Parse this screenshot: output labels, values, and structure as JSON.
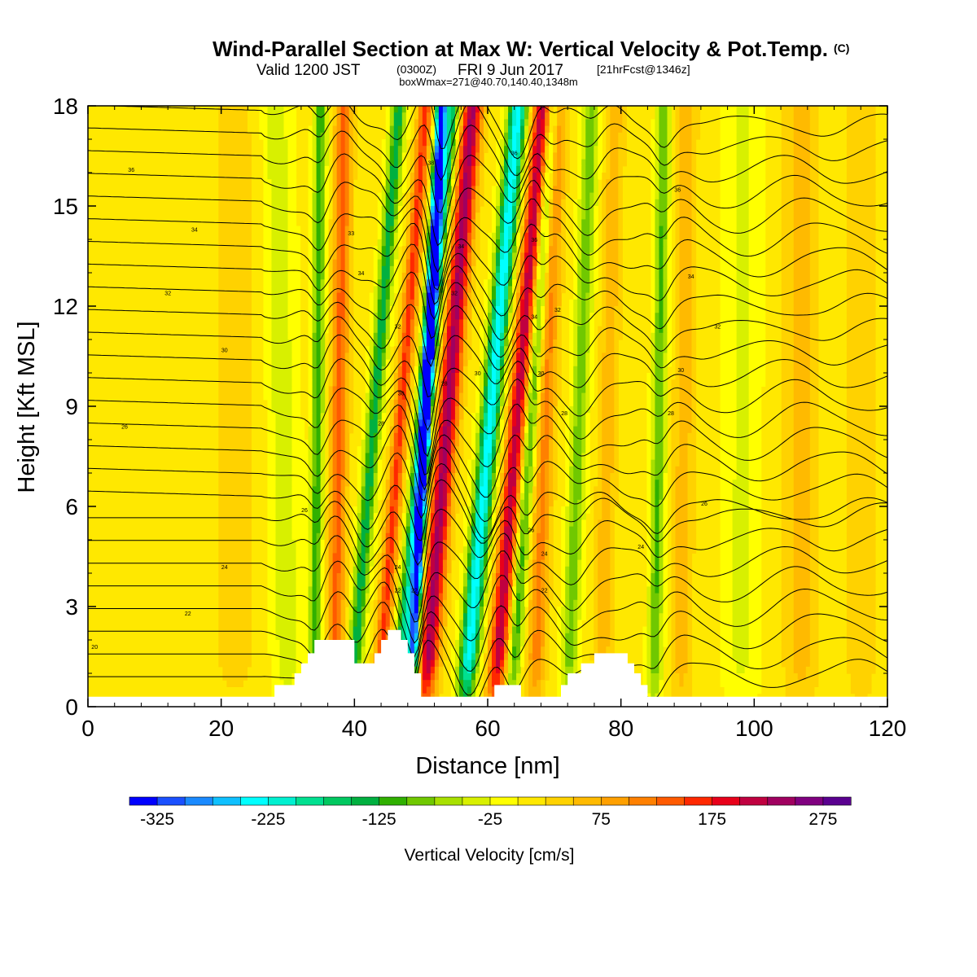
{
  "header": {
    "title": "Wind-Parallel Section at Max W: Vertical Velocity & Pot.Temp.",
    "title_mark": "(C)",
    "valid_prefix": "Valid 1200 JST",
    "valid_utc": "(0300Z)",
    "valid_date": "FRI 9 Jun 2017",
    "forecast": "[21hrFcst@1346z]",
    "boxwmax": "boxWmax=271@40.70,140.40,1348m"
  },
  "chart_data": {
    "type": "heatmap",
    "title": "Wind-Parallel Section at Max W: Vertical Velocity & Pot.Temp.",
    "xlabel": "Distance [nm]",
    "ylabel": "Height [Kft MSL]",
    "xlim": [
      0,
      120
    ],
    "ylim": [
      0,
      18
    ],
    "xticks": [
      0,
      20,
      40,
      60,
      80,
      100,
      120
    ],
    "yticks": [
      0,
      3,
      6,
      9,
      12,
      15,
      18
    ],
    "colorbar": {
      "label": "Vertical Velocity [cm/s]",
      "tick_labels": [
        "-325",
        "-225",
        "-125",
        "-25",
        "75",
        "175",
        "275"
      ],
      "tick_values": [
        -325,
        -225,
        -125,
        -25,
        75,
        175,
        275
      ],
      "min": -350,
      "max": 300,
      "step": 25,
      "colors": [
        "#0000ff",
        "#1a50ff",
        "#1a8aff",
        "#0fc0ff",
        "#00ffff",
        "#00f0d0",
        "#00e090",
        "#00c860",
        "#00b040",
        "#30b000",
        "#70c800",
        "#a8e000",
        "#d8f000",
        "#ffff00",
        "#ffe800",
        "#ffd200",
        "#ffba00",
        "#ffa000",
        "#ff8000",
        "#ff5a00",
        "#ff2800",
        "#e8001a",
        "#c00040",
        "#a00060",
        "#800080",
        "#5a0090"
      ]
    },
    "w_features": [
      {
        "x": 30,
        "w": -50,
        "width": 2.2,
        "tilt": -0.1
      },
      {
        "x": 34,
        "w": -125,
        "width": 0.9,
        "tilt": 0.05
      },
      {
        "x": 37,
        "w": 125,
        "width": 1.3,
        "tilt": 0.08
      },
      {
        "x": 39.5,
        "w": -150,
        "width": 1.1,
        "tilt": 0.4
      },
      {
        "x": 43.5,
        "w": 150,
        "width": 1.1,
        "tilt": 0.4
      },
      {
        "x": 46.5,
        "w": -190,
        "width": 1.2,
        "tilt": 0.45
      },
      {
        "x": 48.5,
        "w": -325,
        "width": 0.8,
        "tilt": 0.25
      },
      {
        "x": 50.5,
        "w": 225,
        "width": 1.6,
        "tilt": 0.4
      },
      {
        "x": 56.5,
        "w": -250,
        "width": 1.4,
        "tilt": 0.45
      },
      {
        "x": 61,
        "w": 210,
        "width": 1.4,
        "tilt": 0.4
      },
      {
        "x": 63.5,
        "w": -125,
        "width": 1.0,
        "tilt": 0.35
      },
      {
        "x": 67,
        "w": 100,
        "width": 1.4,
        "tilt": 0.2
      },
      {
        "x": 72,
        "w": -100,
        "width": 1.2,
        "tilt": 0.2
      },
      {
        "x": 77,
        "w": 60,
        "width": 1.4,
        "tilt": 0.12
      },
      {
        "x": 85,
        "w": -110,
        "width": 1.0,
        "tilt": 0.08
      },
      {
        "x": 89,
        "w": 60,
        "width": 1.5,
        "tilt": 0.05
      },
      {
        "x": 98,
        "w": -40,
        "width": 2.5,
        "tilt": 0.02
      },
      {
        "x": 107,
        "w": 55,
        "width": 2.5,
        "tilt": 0.0
      },
      {
        "x": 116,
        "w": 35,
        "width": 2.5,
        "tilt": 0.0
      },
      {
        "x": 22,
        "w": 25,
        "width": 4.0,
        "tilt": 0.0
      }
    ],
    "terrain": [
      [
        28,
        0.65
      ],
      [
        31,
        0.65
      ],
      [
        31,
        1.0
      ],
      [
        32,
        1.0
      ],
      [
        32,
        1.3
      ],
      [
        33,
        1.3
      ],
      [
        33,
        1.6
      ],
      [
        34,
        1.6
      ],
      [
        34,
        2.0
      ],
      [
        40,
        2.0
      ],
      [
        40,
        1.3
      ],
      [
        43,
        1.3
      ],
      [
        43,
        1.6
      ],
      [
        44,
        1.6
      ],
      [
        44,
        2.0
      ],
      [
        45,
        2.0
      ],
      [
        45,
        2.3
      ],
      [
        47,
        2.3
      ],
      [
        47,
        2.0
      ],
      [
        48,
        2.0
      ],
      [
        48,
        1.6
      ],
      [
        49,
        1.6
      ],
      [
        49,
        1.0
      ],
      [
        50,
        1.0
      ],
      [
        50,
        0.3
      ],
      [
        61,
        0.3
      ],
      [
        61,
        0.65
      ],
      [
        65,
        0.65
      ],
      [
        65,
        0.3
      ],
      [
        71,
        0.3
      ],
      [
        71,
        0.65
      ],
      [
        72,
        0.65
      ],
      [
        72,
        1.0
      ],
      [
        74,
        1.0
      ],
      [
        74,
        1.3
      ],
      [
        76,
        1.3
      ],
      [
        76,
        1.6
      ],
      [
        81,
        1.6
      ],
      [
        81,
        1.3
      ],
      [
        82,
        1.3
      ],
      [
        82,
        1.0
      ],
      [
        83,
        1.0
      ],
      [
        83,
        0.65
      ],
      [
        84,
        0.65
      ],
      [
        84,
        0.3
      ],
      [
        120,
        0.3
      ]
    ],
    "theta_contour_labels": [
      {
        "text": "20",
        "x": 1,
        "y": 1.8
      },
      {
        "text": "22",
        "x": 15,
        "y": 2.8
      },
      {
        "text": "24",
        "x": 20.5,
        "y": 4.2
      },
      {
        "text": "26",
        "x": 32.5,
        "y": 5.9
      },
      {
        "text": "26",
        "x": 5.5,
        "y": 8.4
      },
      {
        "text": "28",
        "x": 44,
        "y": 8.5
      },
      {
        "text": "30",
        "x": 20.5,
        "y": 10.7
      },
      {
        "text": "32",
        "x": 12,
        "y": 12.4
      },
      {
        "text": "34",
        "x": 16,
        "y": 14.3
      },
      {
        "text": "36",
        "x": 6.5,
        "y": 16.1
      },
      {
        "text": "33",
        "x": 39.5,
        "y": 14.2
      },
      {
        "text": "34",
        "x": 41,
        "y": 13.0
      },
      {
        "text": "32",
        "x": 46.5,
        "y": 11.4
      },
      {
        "text": "30",
        "x": 47,
        "y": 9.4
      },
      {
        "text": "24",
        "x": 46.5,
        "y": 4.2
      },
      {
        "text": "22",
        "x": 46.5,
        "y": 3.5
      },
      {
        "text": "22",
        "x": 49,
        "y": 3.5
      },
      {
        "text": "38",
        "x": 51.5,
        "y": 16.3
      },
      {
        "text": "28",
        "x": 53.5,
        "y": 9.7
      },
      {
        "text": "34",
        "x": 56,
        "y": 13.8
      },
      {
        "text": "32",
        "x": 55,
        "y": 12.4
      },
      {
        "text": "30",
        "x": 58.5,
        "y": 10.0
      },
      {
        "text": "36",
        "x": 64,
        "y": 16.6
      },
      {
        "text": "36",
        "x": 67,
        "y": 14.0
      },
      {
        "text": "34",
        "x": 67,
        "y": 11.7
      },
      {
        "text": "32",
        "x": 70.5,
        "y": 11.9
      },
      {
        "text": "30",
        "x": 68,
        "y": 10.0
      },
      {
        "text": "28",
        "x": 71.5,
        "y": 8.8
      },
      {
        "text": "26",
        "x": 66.5,
        "y": 5.3
      },
      {
        "text": "24",
        "x": 68.5,
        "y": 4.6
      },
      {
        "text": "22",
        "x": 68.5,
        "y": 3.5
      },
      {
        "text": "24",
        "x": 83,
        "y": 4.8
      },
      {
        "text": "36",
        "x": 88.5,
        "y": 15.5
      },
      {
        "text": "34",
        "x": 90.5,
        "y": 12.9
      },
      {
        "text": "32",
        "x": 94.5,
        "y": 11.4
      },
      {
        "text": "30",
        "x": 89,
        "y": 10.1
      },
      {
        "text": "28",
        "x": 87.5,
        "y": 8.8
      },
      {
        "text": "26",
        "x": 92.5,
        "y": 6.1
      }
    ]
  }
}
